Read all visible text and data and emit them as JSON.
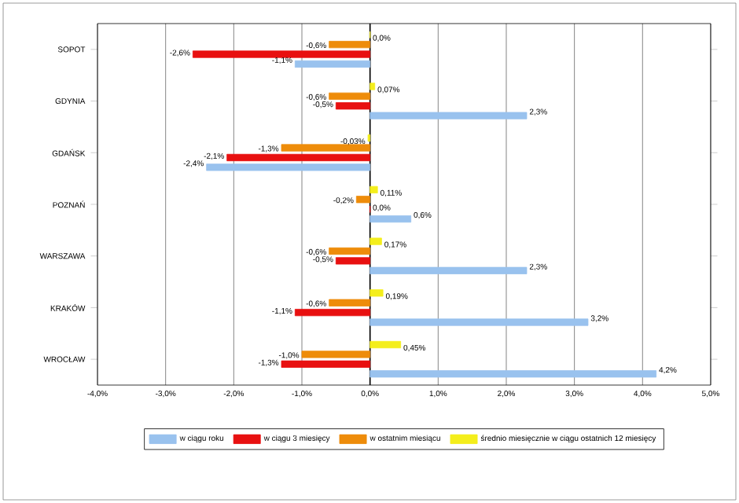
{
  "chart_data": {
    "type": "bar",
    "orientation": "horizontal",
    "categories": [
      "SOPOT",
      "GDYNIA",
      "GDAŃSK",
      "POZNAŃ",
      "WARSZAWA",
      "KRAKÓW",
      "WROCŁAW"
    ],
    "series": [
      {
        "name": "w ciągu roku",
        "color": "#99c2ee",
        "values": [
          -1.1,
          2.3,
          -2.4,
          0.6,
          2.3,
          3.2,
          4.2
        ],
        "value_labels": [
          "-1,1%",
          "2,3%",
          "-2,4%",
          "0,6%",
          "2,3%",
          "3,2%",
          "4,2%"
        ]
      },
      {
        "name": "w ciągu 3 miesięcy",
        "color": "#e81010",
        "values": [
          -2.6,
          -0.5,
          -2.1,
          0.0,
          -0.5,
          -1.1,
          -1.3
        ],
        "value_labels": [
          "-2,6%",
          "-0,5%",
          "-2,1%",
          "0,0%",
          "-0,5%",
          "-1,1%",
          "-1,3%"
        ]
      },
      {
        "name": "w ostatnim miesiącu",
        "color": "#ee8c0a",
        "values": [
          -0.6,
          -0.6,
          -1.3,
          -0.2,
          -0.6,
          -0.6,
          -1.0
        ],
        "value_labels": [
          "-0,6%",
          "-0,6%",
          "-1,3%",
          "-0,2%",
          "-0,6%",
          "-0,6%",
          "-1,0%"
        ]
      },
      {
        "name": "średnio miesięcznie w ciągu ostatnich 12 miesięcy",
        "color": "#f4ee1c",
        "values": [
          0.0,
          0.07,
          -0.03,
          0.11,
          0.17,
          0.19,
          0.45
        ],
        "value_labels": [
          "0,0%",
          "0,07%",
          "-0,03%",
          "0,11%",
          "0,17%",
          "0,19%",
          "0,45%"
        ]
      }
    ],
    "xlim": [
      -4,
      5
    ],
    "xticks": [
      {
        "value": -4,
        "label": "-4,0%"
      },
      {
        "value": -3,
        "label": "-3,0%"
      },
      {
        "value": -2,
        "label": "-2,0%"
      },
      {
        "value": -1,
        "label": "-1,0%"
      },
      {
        "value": 0,
        "label": "0,0%"
      },
      {
        "value": 1,
        "label": "1,0%"
      },
      {
        "value": 2,
        "label": "2,0%"
      },
      {
        "value": 3,
        "label": "3,0%"
      },
      {
        "value": 4,
        "label": "4,0%"
      },
      {
        "value": 5,
        "label": "5,0%"
      }
    ],
    "grid": "x",
    "legend": "bottom"
  }
}
